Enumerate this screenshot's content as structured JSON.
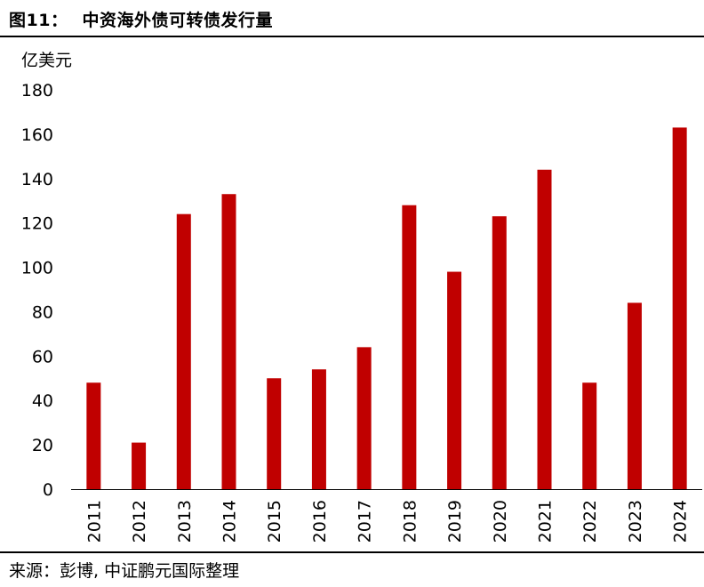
{
  "figure": {
    "number": "图11：",
    "title": "中资海外债可转债发行量",
    "source": "来源：彭博, 中证鹏元国际整理"
  },
  "chart_data": {
    "type": "bar",
    "ylabel": "亿美元",
    "ylim": [
      0,
      180
    ],
    "yticks": [
      0,
      20,
      40,
      60,
      80,
      100,
      120,
      140,
      160,
      180
    ],
    "categories": [
      "2011",
      "2012",
      "2013",
      "2014",
      "2015",
      "2016",
      "2017",
      "2018",
      "2019",
      "2020",
      "2021",
      "2022",
      "2023",
      "2024"
    ],
    "values": [
      48,
      21,
      124,
      133,
      50,
      54,
      64,
      128,
      98,
      123,
      144,
      48,
      84,
      163
    ],
    "bar_color": "#C00000",
    "grid": false,
    "legend": "none"
  }
}
